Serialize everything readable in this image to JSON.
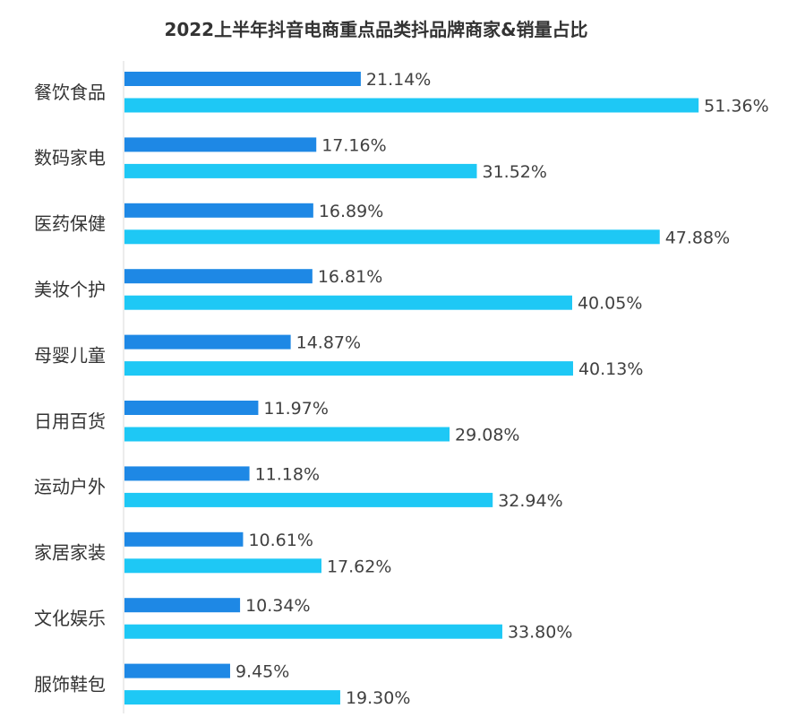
{
  "chart_data": {
    "type": "bar",
    "orientation": "horizontal",
    "title": "2022上半年抖音电商重点品类抖品牌商家&销量占比",
    "categories": [
      "餐饮食品",
      "数码家电",
      "医药保健",
      "美妆个护",
      "母婴儿童",
      "日用百货",
      "运动户外",
      "家居家装",
      "文化娱乐",
      "服饰鞋包"
    ],
    "series": [
      {
        "color": "#1E88E5",
        "values": [
          21.14,
          17.16,
          16.89,
          16.81,
          14.87,
          11.97,
          11.18,
          10.61,
          10.34,
          9.45
        ],
        "labels": [
          "21.14%",
          "17.16%",
          "16.89%",
          "16.81%",
          "14.87%",
          "11.97%",
          "11.18%",
          "10.61%",
          "10.34%",
          "9.45%"
        ]
      },
      {
        "color": "#1EC8F5",
        "values": [
          51.36,
          31.52,
          47.88,
          40.05,
          40.13,
          29.08,
          32.94,
          17.62,
          33.8,
          19.3
        ],
        "labels": [
          "51.36%",
          "31.52%",
          "47.88%",
          "40.05%",
          "40.13%",
          "29.08%",
          "32.94%",
          "17.62%",
          "33.80%",
          "19.30%"
        ]
      }
    ],
    "unit": "%",
    "legend": "none",
    "grid": false
  }
}
